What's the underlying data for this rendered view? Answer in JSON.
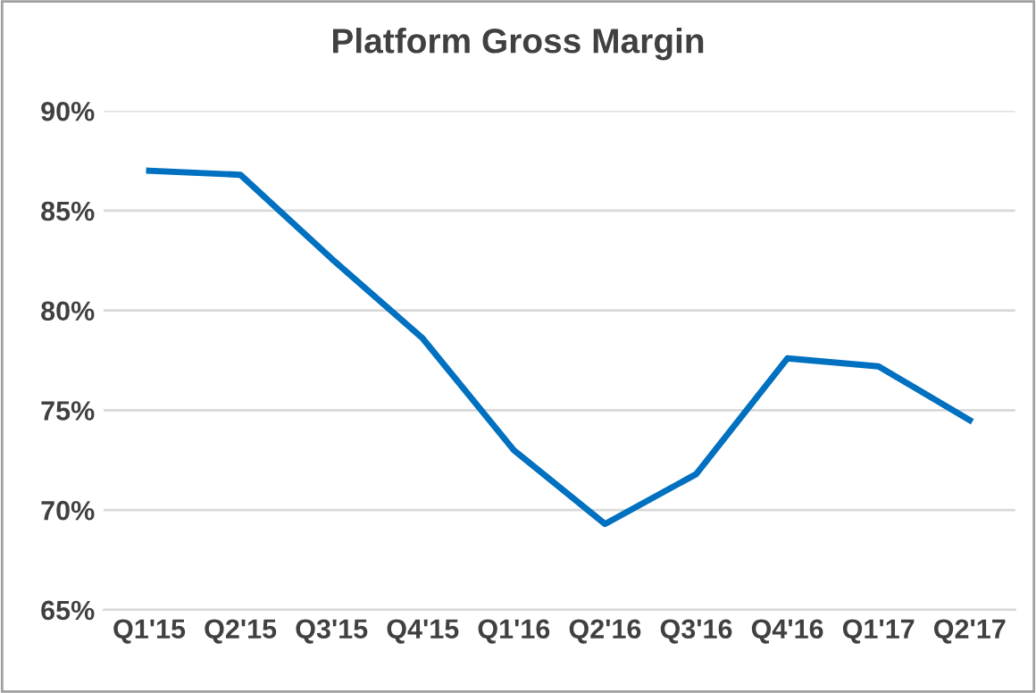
{
  "chart_data": {
    "type": "line",
    "title": "Platform Gross Margin",
    "categories": [
      "Q1'15",
      "Q2'15",
      "Q3'15",
      "Q4'15",
      "Q1'16",
      "Q2'16",
      "Q3'16",
      "Q4'16",
      "Q1'17",
      "Q2'17"
    ],
    "series": [
      {
        "color": "#0070c0",
        "values": [
          87.0,
          86.8,
          82.6,
          78.6,
          73.0,
          69.3,
          71.8,
          77.6,
          77.2,
          74.5
        ]
      }
    ],
    "ylim": [
      65,
      90
    ],
    "yticks": [
      {
        "value": 65,
        "label": "65%"
      },
      {
        "value": 70,
        "label": "70%"
      },
      {
        "value": 75,
        "label": "75%"
      },
      {
        "value": 80,
        "label": "80%"
      },
      {
        "value": 85,
        "label": "85%"
      },
      {
        "value": 90,
        "label": "90%"
      }
    ],
    "grid": "y",
    "marker": "none",
    "line_style": "solid"
  }
}
